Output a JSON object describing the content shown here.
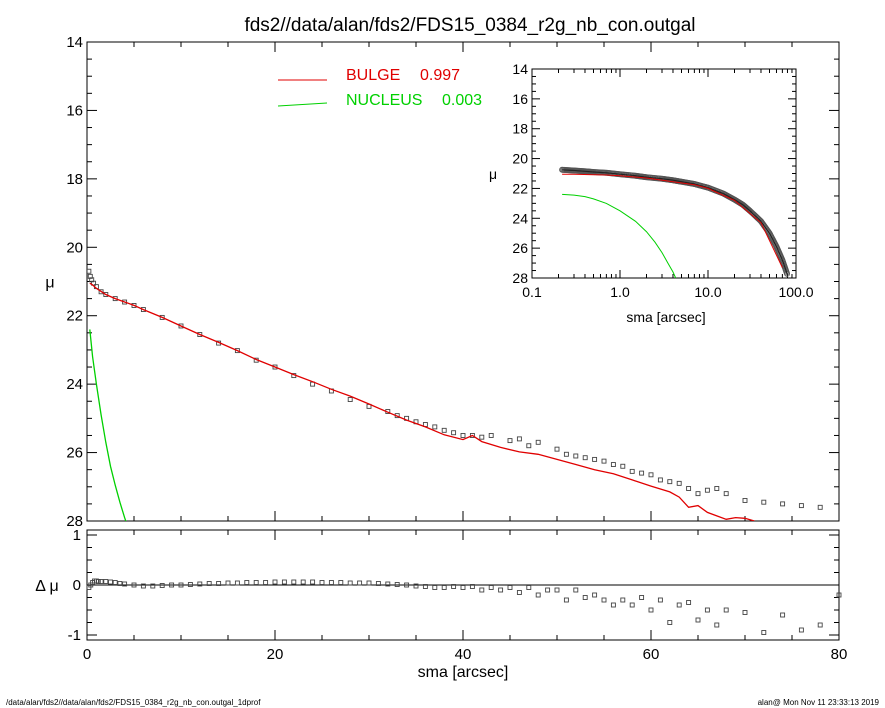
{
  "title": "fds2//data/alan/fds2/FDS15_0384_r2g_nb_con.outgal",
  "footer": {
    "left": "/data/alan/fds2//data/alan/fds2/FDS15_0384_r2g_nb_con.outgal_1dprof",
    "right": "alan@  Mon Nov 11 23:33:13 2019"
  },
  "colors": {
    "bulge": "#e00000",
    "nucleus": "#00d000",
    "data": "#444444",
    "axes": "#000000"
  },
  "chart_data": [
    {
      "id": "main",
      "type": "line",
      "xlabel": "",
      "ylabel": "μ",
      "xlim": [
        0,
        80
      ],
      "ylim": [
        28,
        14
      ],
      "y_inverted": true,
      "x_ticks": [
        0,
        20,
        40,
        60,
        80
      ],
      "y_ticks": [
        14,
        16,
        18,
        20,
        22,
        24,
        26,
        28
      ],
      "legend_position": "top-center",
      "series": [
        {
          "name": "BULGE",
          "value_label": "0.997",
          "color": "#e00000",
          "x": [
            0.3,
            0.6,
            1,
            2,
            3,
            4,
            5,
            6,
            8,
            10,
            12,
            14,
            16,
            18,
            20,
            22,
            24,
            26,
            28,
            30,
            32,
            34,
            36,
            38,
            40,
            41,
            42,
            44,
            46,
            48,
            50,
            52,
            54,
            56,
            58,
            60,
            62,
            63,
            64,
            65,
            66,
            67,
            68,
            69,
            70,
            71
          ],
          "y": [
            21.05,
            21.1,
            21.2,
            21.38,
            21.5,
            21.6,
            21.7,
            21.82,
            22.05,
            22.3,
            22.55,
            22.78,
            23.02,
            23.28,
            23.5,
            23.72,
            23.93,
            24.15,
            24.35,
            24.58,
            24.82,
            25.05,
            25.25,
            25.48,
            25.62,
            25.5,
            25.68,
            25.85,
            25.98,
            26.05,
            26.2,
            26.35,
            26.5,
            26.62,
            26.8,
            26.98,
            27.15,
            27.3,
            27.6,
            27.55,
            27.75,
            27.85,
            27.95,
            27.9,
            27.92,
            28.0
          ]
        },
        {
          "name": "NUCLEUS",
          "value_label": "0.003",
          "color": "#00d000",
          "x": [
            0.3,
            0.6,
            1,
            1.5,
            2,
            2.5,
            3,
            3.5,
            4,
            4.5
          ],
          "y": [
            22.4,
            23.2,
            24.0,
            24.9,
            25.7,
            26.4,
            26.95,
            27.45,
            27.9,
            28.3
          ]
        },
        {
          "name": "",
          "kind": "markers",
          "color": "#444444",
          "x": [
            0.2,
            0.35,
            0.5,
            0.7,
            1,
            1.5,
            2,
            3,
            4,
            5,
            6,
            8,
            10,
            12,
            14,
            16,
            18,
            20,
            22,
            24,
            26,
            28,
            30,
            32,
            33,
            34,
            35,
            36,
            37,
            38,
            39,
            40,
            41,
            42,
            43,
            45,
            46,
            47,
            48,
            50,
            51,
            52,
            53,
            54,
            55,
            56,
            57,
            58,
            59,
            60,
            61,
            62,
            63,
            64,
            65,
            66,
            67,
            68,
            70,
            72,
            74,
            76,
            78
          ],
          "y": [
            20.7,
            20.85,
            20.95,
            21.05,
            21.15,
            21.3,
            21.38,
            21.5,
            21.6,
            21.7,
            21.82,
            22.05,
            22.3,
            22.55,
            22.8,
            23.02,
            23.3,
            23.5,
            23.75,
            24.0,
            24.2,
            24.45,
            24.65,
            24.8,
            24.92,
            25.0,
            25.1,
            25.18,
            25.25,
            25.35,
            25.42,
            25.5,
            25.5,
            25.55,
            25.5,
            25.65,
            25.6,
            25.8,
            25.7,
            25.9,
            26.05,
            26.1,
            26.15,
            26.2,
            26.25,
            26.35,
            26.4,
            26.55,
            26.6,
            26.65,
            26.8,
            26.85,
            26.9,
            27.05,
            27.2,
            27.1,
            27.05,
            27.2,
            27.4,
            27.45,
            27.5,
            27.55,
            27.6
          ]
        }
      ]
    },
    {
      "id": "residual",
      "type": "scatter",
      "xlabel": "sma [arcsec]",
      "ylabel": "Δ μ",
      "xlim": [
        0,
        80
      ],
      "ylim": [
        -1.1,
        1.1
      ],
      "x_ticks": [
        0,
        20,
        40,
        60,
        80
      ],
      "y_ticks": [
        1,
        0,
        -1
      ],
      "series": [
        {
          "name": "",
          "x": [
            0.2,
            0.4,
            0.6,
            0.8,
            1,
            1.2,
            1.5,
            2,
            2.5,
            3,
            3.5,
            4,
            5,
            6,
            7,
            8,
            9,
            10,
            11,
            12,
            13,
            14,
            15,
            16,
            17,
            18,
            19,
            20,
            21,
            22,
            23,
            24,
            25,
            26,
            27,
            28,
            29,
            30,
            31,
            32,
            33,
            34,
            35,
            36,
            37,
            38,
            39,
            40,
            41,
            42,
            43,
            44,
            45,
            46,
            47,
            48,
            49,
            50,
            51,
            52,
            53,
            54,
            55,
            56,
            57,
            58,
            59,
            60,
            61,
            62,
            63,
            64,
            65,
            66,
            67,
            68,
            70,
            72,
            74,
            76,
            78,
            80
          ],
          "y": [
            -0.05,
            0.0,
            0.05,
            0.08,
            0.08,
            0.07,
            0.07,
            0.07,
            0.06,
            0.05,
            0.03,
            0.02,
            0.0,
            -0.02,
            -0.02,
            -0.01,
            0.0,
            0.0,
            0.01,
            0.02,
            0.03,
            0.03,
            0.04,
            0.04,
            0.05,
            0.05,
            0.05,
            0.06,
            0.06,
            0.06,
            0.06,
            0.06,
            0.05,
            0.05,
            0.05,
            0.04,
            0.04,
            0.04,
            0.03,
            0.02,
            0.01,
            0.0,
            -0.02,
            -0.03,
            -0.05,
            -0.05,
            -0.03,
            -0.05,
            -0.03,
            -0.1,
            -0.05,
            -0.1,
            -0.05,
            -0.15,
            -0.05,
            -0.2,
            -0.1,
            -0.1,
            -0.3,
            -0.1,
            -0.25,
            -0.2,
            -0.3,
            -0.4,
            -0.3,
            -0.4,
            -0.25,
            -0.5,
            -0.3,
            -0.75,
            -0.4,
            -0.35,
            -0.7,
            -0.5,
            -0.8,
            -0.5,
            -0.55,
            -0.95,
            -0.6,
            -0.9,
            -0.8,
            -0.2
          ]
        }
      ]
    },
    {
      "id": "inset",
      "type": "line",
      "xlabel": "sma [arcsec]",
      "ylabel": "μ",
      "x_scale": "log",
      "xlim": [
        0.1,
        100
      ],
      "ylim": [
        28,
        14
      ],
      "y_inverted": true,
      "x_tick_labels": [
        "0.1",
        "1.0",
        "10.0",
        "100.0"
      ],
      "x_ticks": [
        0.1,
        1,
        10,
        100
      ],
      "y_ticks": [
        14,
        16,
        18,
        20,
        22,
        24,
        26,
        28
      ],
      "series": [
        {
          "name": "",
          "kind": "data",
          "color": "#444444",
          "x": [
            0.22,
            0.3,
            0.4,
            0.5,
            0.7,
            1,
            1.5,
            2,
            3,
            4,
            5,
            7,
            10,
            15,
            20,
            25,
            30,
            40,
            50,
            60,
            70,
            80
          ],
          "y": [
            20.75,
            20.8,
            20.85,
            20.9,
            20.95,
            21.05,
            21.15,
            21.25,
            21.35,
            21.45,
            21.55,
            21.7,
            21.95,
            22.35,
            22.75,
            23.1,
            23.5,
            24.2,
            25.0,
            25.9,
            26.8,
            27.8
          ]
        },
        {
          "name": "",
          "kind": "bulge",
          "color": "#e00000",
          "x": [
            0.22,
            0.3,
            0.5,
            0.7,
            1,
            2,
            4,
            7,
            10,
            20,
            40,
            70
          ],
          "y": [
            21.05,
            21.05,
            21.08,
            21.1,
            21.15,
            21.3,
            21.55,
            21.75,
            22.0,
            22.8,
            24.3,
            27.3
          ]
        },
        {
          "name": "",
          "kind": "nucleus",
          "color": "#00d000",
          "x": [
            0.22,
            0.3,
            0.4,
            0.5,
            0.7,
            1,
            1.5,
            2,
            2.5,
            3,
            3.5,
            4,
            4.3
          ],
          "y": [
            22.4,
            22.45,
            22.55,
            22.7,
            23.0,
            23.5,
            24.2,
            24.9,
            25.6,
            26.3,
            27.0,
            27.6,
            28.0
          ]
        }
      ]
    }
  ]
}
